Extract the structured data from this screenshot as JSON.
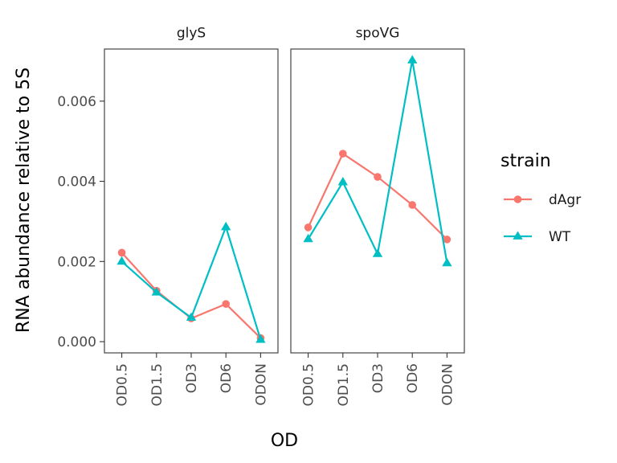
{
  "chart_data": {
    "type": "line",
    "layout": "facet",
    "ylabel": "RNA abundance relative to 5S",
    "xlabel": "OD",
    "categories": [
      "OD0.5",
      "OD1.5",
      "OD3",
      "OD6",
      "ODON"
    ],
    "ylim": [
      -0.00028,
      0.0073
    ],
    "yticks": [
      0.0,
      0.002,
      0.004,
      0.006
    ],
    "ytick_labels": [
      "0.000",
      "0.002",
      "0.004",
      "0.006"
    ],
    "grid": false,
    "legend": {
      "title": "strain",
      "position": "right",
      "entries": [
        {
          "name": "dAgr",
          "color": "#F8766D",
          "marker": "circle"
        },
        {
          "name": "WT",
          "color": "#00BFC4",
          "marker": "triangle"
        }
      ]
    },
    "facets": [
      {
        "label": "glyS",
        "series": [
          {
            "name": "dAgr",
            "values": [
              0.00222,
              0.00127,
              0.00058,
              0.00094,
              9e-05
            ]
          },
          {
            "name": "WT",
            "values": [
              0.002,
              0.00123,
              0.0006,
              0.00286,
              5e-05
            ]
          }
        ]
      },
      {
        "label": "spoVG",
        "series": [
          {
            "name": "dAgr",
            "values": [
              0.00285,
              0.00469,
              0.00411,
              0.00341,
              0.00255
            ]
          },
          {
            "name": "WT",
            "values": [
              0.00256,
              0.00398,
              0.00219,
              0.00702,
              0.00196
            ]
          }
        ]
      }
    ]
  }
}
